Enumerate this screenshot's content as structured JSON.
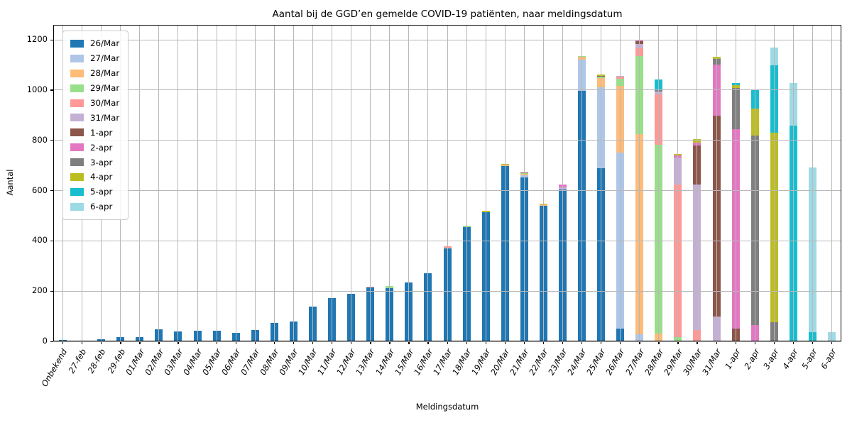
{
  "title": "Aantal bij de GGD’en gemelde COVID-19 patiënten, naar meldingsdatum",
  "chart_data": {
    "type": "bar",
    "stacked": true,
    "title": "Aantal bij de GGD’en gemelde COVID-19 patiënten, naar meldingsdatum",
    "xlabel": "Meldingsdatum",
    "ylabel": "Aantal",
    "ylim": [
      0,
      1259
    ],
    "yticks": [
      0,
      200,
      400,
      600,
      800,
      1000,
      1200
    ],
    "grid": true,
    "legend_position": "upper-left",
    "categories": [
      "Onbekend",
      "27-feb",
      "28-feb",
      "29-feb",
      "01/Mar",
      "02/Mar",
      "03/Mar",
      "04/Mar",
      "05/Mar",
      "06/Mar",
      "07/Mar",
      "08/Mar",
      "09/Mar",
      "10/Mar",
      "11/Mar",
      "12/Mar",
      "13/Mar",
      "14/Mar",
      "15/Mar",
      "16/Mar",
      "17/Mar",
      "18/Mar",
      "19/Mar",
      "20/Mar",
      "21/Mar",
      "22/Mar",
      "23/Mar",
      "24/Mar",
      "25/Mar",
      "26/Mar",
      "27/Mar",
      "28/Mar",
      "29/Mar",
      "30/Mar",
      "31/Mar",
      "1-apr",
      "2-apr",
      "3-apr",
      "4-apr",
      "5-apr",
      "6-apr"
    ],
    "series": [
      {
        "name": "26/Mar",
        "color": "#1f77b4",
        "values": [
          5,
          4,
          8,
          16,
          16,
          48,
          40,
          43,
          43,
          34,
          45,
          73,
          80,
          137,
          172,
          188,
          214,
          213,
          235,
          272,
          369,
          454,
          515,
          697,
          652,
          538,
          604,
          998,
          690,
          52,
          0,
          0,
          0,
          0,
          0,
          0,
          0,
          0,
          0,
          0,
          0
        ]
      },
      {
        "name": "27/Mar",
        "color": "#aec7e8",
        "values": [
          0,
          0,
          0,
          0,
          0,
          0,
          0,
          0,
          0,
          0,
          0,
          0,
          0,
          0,
          0,
          0,
          0,
          0,
          0,
          0,
          0,
          0,
          0,
          0,
          8,
          0,
          0,
          122,
          322,
          698,
          28,
          0,
          0,
          0,
          0,
          0,
          0,
          0,
          0,
          0,
          0
        ]
      },
      {
        "name": "28/Mar",
        "color": "#ffbb78",
        "values": [
          0,
          0,
          0,
          0,
          0,
          0,
          0,
          0,
          0,
          0,
          0,
          0,
          0,
          0,
          0,
          0,
          0,
          0,
          0,
          0,
          5,
          0,
          0,
          5,
          6,
          7,
          0,
          11,
          36,
          267,
          796,
          31,
          0,
          0,
          0,
          0,
          0,
          0,
          0,
          0,
          0
        ]
      },
      {
        "name": "29/Mar",
        "color": "#98df8a",
        "values": [
          0,
          0,
          0,
          0,
          0,
          0,
          0,
          0,
          0,
          0,
          0,
          0,
          0,
          0,
          0,
          0,
          0,
          8,
          0,
          0,
          0,
          6,
          0,
          0,
          4,
          0,
          0,
          3,
          4,
          28,
          311,
          751,
          17,
          0,
          0,
          0,
          0,
          0,
          0,
          0,
          0
        ]
      },
      {
        "name": "30/Mar",
        "color": "#ff9896",
        "values": [
          0,
          0,
          0,
          0,
          0,
          0,
          0,
          0,
          0,
          0,
          0,
          0,
          0,
          0,
          0,
          0,
          3,
          0,
          0,
          0,
          3,
          0,
          0,
          0,
          0,
          0,
          0,
          0,
          0,
          7,
          32,
          200,
          606,
          45,
          0,
          0,
          0,
          0,
          0,
          0,
          0
        ]
      },
      {
        "name": "31/Mar",
        "color": "#c5b0d5",
        "values": [
          0,
          0,
          0,
          0,
          0,
          0,
          0,
          0,
          0,
          0,
          0,
          0,
          0,
          0,
          0,
          0,
          0,
          0,
          0,
          0,
          0,
          0,
          0,
          0,
          0,
          0,
          9,
          0,
          0,
          3,
          17,
          12,
          109,
          580,
          100,
          0,
          0,
          0,
          0,
          0,
          0
        ]
      },
      {
        "name": "1-apr",
        "color": "#8c564b",
        "values": [
          0,
          0,
          0,
          0,
          0,
          0,
          0,
          0,
          0,
          0,
          0,
          0,
          0,
          0,
          0,
          0,
          0,
          0,
          0,
          0,
          0,
          0,
          0,
          0,
          3,
          0,
          0,
          0,
          4,
          0,
          11,
          0,
          0,
          153,
          797,
          50,
          0,
          0,
          0,
          0,
          0
        ]
      },
      {
        "name": "2-apr",
        "color": "#e377c2",
        "values": [
          0,
          0,
          0,
          0,
          0,
          0,
          0,
          0,
          0,
          0,
          0,
          0,
          0,
          0,
          0,
          0,
          0,
          0,
          0,
          0,
          0,
          0,
          0,
          0,
          0,
          0,
          12,
          0,
          0,
          0,
          3,
          0,
          8,
          14,
          204,
          795,
          64,
          0,
          0,
          0,
          0
        ]
      },
      {
        "name": "3-apr",
        "color": "#7f7f7f",
        "values": [
          0,
          0,
          0,
          0,
          0,
          0,
          0,
          0,
          0,
          0,
          0,
          0,
          0,
          0,
          0,
          0,
          0,
          0,
          0,
          0,
          0,
          0,
          0,
          0,
          0,
          0,
          0,
          0,
          0,
          0,
          0,
          6,
          0,
          0,
          22,
          163,
          756,
          75,
          0,
          0,
          0
        ]
      },
      {
        "name": "4-apr",
        "color": "#bcbd22",
        "values": [
          0,
          0,
          0,
          0,
          0,
          0,
          0,
          0,
          0,
          0,
          0,
          0,
          0,
          0,
          0,
          0,
          0,
          0,
          0,
          0,
          0,
          0,
          5,
          3,
          0,
          4,
          0,
          0,
          5,
          0,
          0,
          0,
          6,
          13,
          8,
          12,
          105,
          754,
          0,
          0,
          0
        ]
      },
      {
        "name": "5-apr",
        "color": "#17becf",
        "values": [
          0,
          0,
          0,
          0,
          0,
          0,
          0,
          0,
          0,
          0,
          0,
          0,
          0,
          0,
          0,
          0,
          0,
          0,
          0,
          0,
          0,
          0,
          0,
          0,
          0,
          0,
          0,
          0,
          0,
          0,
          0,
          42,
          0,
          0,
          0,
          8,
          78,
          269,
          857,
          36,
          0
        ]
      },
      {
        "name": "6-apr",
        "color": "#9edae5",
        "values": [
          0,
          0,
          0,
          0,
          0,
          0,
          0,
          0,
          0,
          0,
          0,
          0,
          0,
          0,
          0,
          0,
          0,
          0,
          0,
          0,
          0,
          0,
          0,
          0,
          0,
          0,
          0,
          0,
          0,
          0,
          0,
          0,
          0,
          0,
          0,
          0,
          0,
          71,
          171,
          657,
          37
        ]
      }
    ]
  }
}
